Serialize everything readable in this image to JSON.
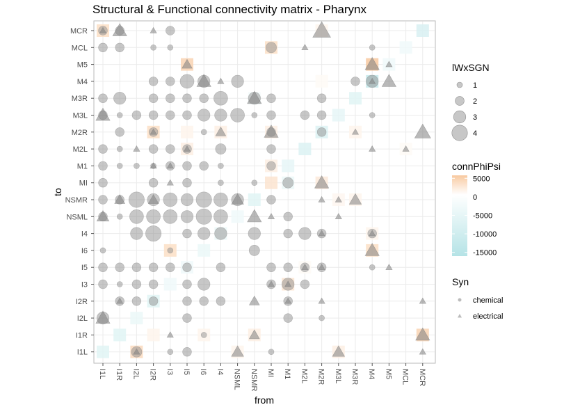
{
  "chart_data": {
    "type": "scatter",
    "title": "Structural & Functional connectivity matrix - Pharynx",
    "xlabel": "from",
    "ylabel": "to",
    "x_categories": [
      "I1L",
      "I1R",
      "I2L",
      "I2R",
      "I3",
      "I5",
      "I6",
      "I4",
      "NSML",
      "NSMR",
      "MI",
      "M1",
      "M2L",
      "M2R",
      "M3L",
      "M3R",
      "M4",
      "M5",
      "MCL",
      "MCR"
    ],
    "y_categories": [
      "MCR",
      "MCL",
      "M5",
      "M4",
      "M3R",
      "M3L",
      "M2R",
      "M2L",
      "M1",
      "MI",
      "NSMR",
      "NSML",
      "I4",
      "I6",
      "I5",
      "I3",
      "I2R",
      "I2L",
      "I1R",
      "I1L"
    ],
    "legend_size": {
      "title": "lWxSGN",
      "labels": [
        "1",
        "2",
        "3",
        "4"
      ],
      "values": [
        1,
        2,
        3,
        4
      ]
    },
    "legend_color": {
      "title": "connPhiPsi",
      "labels": [
        "5000",
        "0",
        "-5000",
        "-10000",
        "-15000"
      ],
      "values": [
        5000,
        0,
        -5000,
        -10000,
        -15000
      ],
      "colors": {
        "positive": "#f8c9a0",
        "zero": "#ffffff",
        "negative": "#b5e3e6"
      }
    },
    "legend_shape": {
      "title": "Syn",
      "labels": [
        "chemical",
        "electrical"
      ]
    },
    "tiles": [
      [
        "MCR",
        "I1L",
        3000
      ],
      [
        "MCR",
        "M2R",
        1000
      ],
      [
        "MCR",
        "MCR",
        -8000
      ],
      [
        "MCL",
        "MI",
        3000
      ],
      [
        "MCL",
        "MCL",
        -3000
      ],
      [
        "M5",
        "I5",
        4000
      ],
      [
        "M5",
        "M4",
        5000
      ],
      [
        "M5",
        "M5",
        -3000
      ],
      [
        "M4",
        "M2R",
        500
      ],
      [
        "M4",
        "M4",
        -12000
      ],
      [
        "M3R",
        "NSMR",
        -2000
      ],
      [
        "M3R",
        "M3R",
        -6000
      ],
      [
        "M3L",
        "M3L",
        -5000
      ],
      [
        "M2R",
        "I2R",
        3000
      ],
      [
        "M2R",
        "I5",
        1000
      ],
      [
        "M2R",
        "I4",
        1500
      ],
      [
        "M2R",
        "MI",
        1500
      ],
      [
        "M2R",
        "M2R",
        -7000
      ],
      [
        "M2R",
        "M3R",
        1000
      ],
      [
        "M2L",
        "I5",
        1500
      ],
      [
        "M2L",
        "M2L",
        -7000
      ],
      [
        "M2L",
        "MCL",
        500
      ],
      [
        "M1",
        "M1",
        -5000
      ],
      [
        "M1",
        "MI",
        1500
      ],
      [
        "MI",
        "MI",
        2500
      ],
      [
        "MI",
        "M1",
        -4000
      ],
      [
        "MI",
        "M2R",
        2000
      ],
      [
        "NSMR",
        "NSMR",
        -6000
      ],
      [
        "NSMR",
        "M3L",
        800
      ],
      [
        "NSMR",
        "M3R",
        1000
      ],
      [
        "NSML",
        "NSML",
        -3000
      ],
      [
        "I4",
        "I4",
        -4000
      ],
      [
        "I4",
        "M4",
        1000
      ],
      [
        "I6",
        "I3",
        3000
      ],
      [
        "I6",
        "I6",
        -4000
      ],
      [
        "I6",
        "M4",
        3000
      ],
      [
        "I5",
        "I5",
        -3000
      ],
      [
        "I5",
        "M2L",
        500
      ],
      [
        "I3",
        "I3",
        -3000
      ],
      [
        "I3",
        "M1",
        2500
      ],
      [
        "I2R",
        "I2R",
        -6000
      ],
      [
        "I2L",
        "I2L",
        -4000
      ],
      [
        "I1R",
        "I1R",
        -6000
      ],
      [
        "I1R",
        "I2R",
        1000
      ],
      [
        "I1R",
        "I6",
        1000
      ],
      [
        "I1R",
        "NSMR",
        1500
      ],
      [
        "I1R",
        "MCR",
        4000
      ],
      [
        "I1L",
        "I1L",
        -6000
      ],
      [
        "I1L",
        "I2L",
        3500
      ],
      [
        "I1L",
        "NSML",
        1000
      ],
      [
        "I1L",
        "M3L",
        1500
      ]
    ],
    "points": [
      [
        "MCR",
        "I1L",
        "chemical",
        2
      ],
      [
        "MCR",
        "I1L",
        "electrical",
        1
      ],
      [
        "MCR",
        "I1R",
        "chemical",
        2
      ],
      [
        "MCR",
        "I1R",
        "electrical",
        3
      ],
      [
        "MCR",
        "I2R",
        "electrical",
        1
      ],
      [
        "MCR",
        "I3",
        "chemical",
        2
      ],
      [
        "MCR",
        "M2R",
        "electrical",
        4
      ],
      [
        "MCL",
        "I1L",
        "chemical",
        2
      ],
      [
        "MCL",
        "I1R",
        "chemical",
        2
      ],
      [
        "MCL",
        "I2R",
        "chemical",
        1
      ],
      [
        "MCL",
        "I3",
        "chemical",
        1
      ],
      [
        "MCL",
        "MI",
        "chemical",
        2.5
      ],
      [
        "MCL",
        "M2L",
        "electrical",
        1
      ],
      [
        "MCL",
        "M4",
        "chemical",
        1
      ],
      [
        "M5",
        "I5",
        "electrical",
        2
      ],
      [
        "M5",
        "M4",
        "electrical",
        3
      ],
      [
        "M5",
        "M5",
        "electrical",
        1
      ],
      [
        "M4",
        "I2R",
        "chemical",
        2
      ],
      [
        "M4",
        "I3",
        "chemical",
        2
      ],
      [
        "M4",
        "I5",
        "chemical",
        3.5
      ],
      [
        "M4",
        "I6",
        "chemical",
        3
      ],
      [
        "M4",
        "I6",
        "electrical",
        3
      ],
      [
        "M4",
        "I4",
        "electrical",
        1
      ],
      [
        "M4",
        "NSML",
        "chemical",
        3
      ],
      [
        "M4",
        "M3R",
        "chemical",
        2
      ],
      [
        "M4",
        "M4",
        "chemical",
        3
      ],
      [
        "M4",
        "M4",
        "electrical",
        1
      ],
      [
        "M4",
        "M5",
        "electrical",
        3
      ],
      [
        "M3R",
        "I1L",
        "chemical",
        2
      ],
      [
        "M3R",
        "I1R",
        "chemical",
        3
      ],
      [
        "M3R",
        "I2R",
        "chemical",
        2
      ],
      [
        "M3R",
        "I3",
        "chemical",
        2
      ],
      [
        "M3R",
        "I5",
        "chemical",
        2
      ],
      [
        "M3R",
        "I6",
        "chemical",
        2
      ],
      [
        "M3R",
        "I4",
        "chemical",
        3.5
      ],
      [
        "M3R",
        "NSMR",
        "chemical",
        3
      ],
      [
        "M3R",
        "NSMR",
        "electrical",
        3
      ],
      [
        "M3R",
        "MI",
        "chemical",
        2
      ],
      [
        "M3R",
        "M2R",
        "chemical",
        2
      ],
      [
        "M3L",
        "I1L",
        "chemical",
        2
      ],
      [
        "M3L",
        "I1L",
        "electrical",
        3
      ],
      [
        "M3L",
        "I1R",
        "chemical",
        1
      ],
      [
        "M3L",
        "I2L",
        "chemical",
        2
      ],
      [
        "M3L",
        "I2R",
        "chemical",
        2
      ],
      [
        "M3L",
        "I3",
        "chemical",
        2
      ],
      [
        "M3L",
        "I5",
        "chemical",
        2
      ],
      [
        "M3L",
        "I6",
        "chemical",
        3
      ],
      [
        "M3L",
        "I4",
        "chemical",
        3
      ],
      [
        "M3L",
        "NSML",
        "chemical",
        3.5
      ],
      [
        "M3L",
        "NSMR",
        "chemical",
        1
      ],
      [
        "M3L",
        "MI",
        "chemical",
        2
      ],
      [
        "M3L",
        "M2L",
        "chemical",
        2
      ],
      [
        "M3L",
        "M2R",
        "chemical",
        2
      ],
      [
        "M3L",
        "M4",
        "chemical",
        1
      ],
      [
        "M2R",
        "I1R",
        "chemical",
        2
      ],
      [
        "M2R",
        "I2R",
        "chemical",
        2
      ],
      [
        "M2R",
        "I2R",
        "electrical",
        1
      ],
      [
        "M2R",
        "I6",
        "chemical",
        1
      ],
      [
        "M2R",
        "I4",
        "electrical",
        2
      ],
      [
        "M2R",
        "MI",
        "chemical",
        2
      ],
      [
        "M2R",
        "MI",
        "electrical",
        3
      ],
      [
        "M2R",
        "M2R",
        "chemical",
        2
      ],
      [
        "M2R",
        "M3R",
        "electrical",
        1
      ],
      [
        "M2R",
        "MCR",
        "electrical",
        3.5
      ],
      [
        "M2L",
        "I1L",
        "chemical",
        2
      ],
      [
        "M2L",
        "I1R",
        "chemical",
        1
      ],
      [
        "M2L",
        "I2L",
        "electrical",
        1
      ],
      [
        "M2L",
        "I2R",
        "chemical",
        2
      ],
      [
        "M2L",
        "I3",
        "chemical",
        2
      ],
      [
        "M2L",
        "I5",
        "chemical",
        2
      ],
      [
        "M2L",
        "I5",
        "electrical",
        1
      ],
      [
        "M2L",
        "I4",
        "chemical",
        2.5
      ],
      [
        "M2L",
        "MI",
        "chemical",
        2
      ],
      [
        "M2L",
        "M4",
        "electrical",
        1
      ],
      [
        "M2L",
        "MCL",
        "electrical",
        1
      ],
      [
        "M1",
        "I1L",
        "chemical",
        2
      ],
      [
        "M1",
        "I1R",
        "chemical",
        1
      ],
      [
        "M1",
        "I2L",
        "chemical",
        1
      ],
      [
        "M1",
        "I2R",
        "chemical",
        1
      ],
      [
        "M1",
        "I2R",
        "electrical",
        1
      ],
      [
        "M1",
        "I3",
        "chemical",
        2
      ],
      [
        "M1",
        "I3",
        "electrical",
        1
      ],
      [
        "M1",
        "I5",
        "chemical",
        2
      ],
      [
        "M1",
        "I6",
        "chemical",
        2
      ],
      [
        "M1",
        "I4",
        "chemical",
        1
      ],
      [
        "M1",
        "MI",
        "chemical",
        2
      ],
      [
        "MI",
        "I1L",
        "chemical",
        2
      ],
      [
        "MI",
        "I2R",
        "chemical",
        2
      ],
      [
        "MI",
        "I3",
        "electrical",
        1
      ],
      [
        "MI",
        "I5",
        "chemical",
        2
      ],
      [
        "MI",
        "I4",
        "chemical",
        1
      ],
      [
        "MI",
        "NSMR",
        "chemical",
        1
      ],
      [
        "MI",
        "M1",
        "chemical",
        2.5
      ],
      [
        "MI",
        "M2R",
        "electrical",
        3
      ],
      [
        "NSMR",
        "I1L",
        "chemical",
        2
      ],
      [
        "NSMR",
        "I1R",
        "chemical",
        2
      ],
      [
        "NSMR",
        "I1R",
        "electrical",
        2
      ],
      [
        "NSMR",
        "I2L",
        "chemical",
        4
      ],
      [
        "NSMR",
        "I2R",
        "chemical",
        3
      ],
      [
        "NSMR",
        "I2R",
        "electrical",
        2
      ],
      [
        "NSMR",
        "I3",
        "chemical",
        3.5
      ],
      [
        "NSMR",
        "I5",
        "chemical",
        3
      ],
      [
        "NSMR",
        "I6",
        "chemical",
        4
      ],
      [
        "NSMR",
        "I4",
        "chemical",
        3.5
      ],
      [
        "NSMR",
        "NSML",
        "chemical",
        3
      ],
      [
        "NSMR",
        "NSML",
        "electrical",
        2.5
      ],
      [
        "NSMR",
        "MI",
        "chemical",
        2
      ],
      [
        "NSMR",
        "M2R",
        "electrical",
        1
      ],
      [
        "NSMR",
        "M3L",
        "electrical",
        1
      ],
      [
        "NSMR",
        "M3R",
        "electrical",
        2.5
      ],
      [
        "NSML",
        "I1L",
        "chemical",
        2
      ],
      [
        "NSML",
        "I1L",
        "electrical",
        2.5
      ],
      [
        "NSML",
        "I1R",
        "chemical",
        1
      ],
      [
        "NSML",
        "I2L",
        "chemical",
        3.5
      ],
      [
        "NSML",
        "I2R",
        "chemical",
        3.5
      ],
      [
        "NSML",
        "I3",
        "chemical",
        3.5
      ],
      [
        "NSML",
        "I5",
        "chemical",
        3
      ],
      [
        "NSML",
        "I6",
        "chemical",
        4
      ],
      [
        "NSML",
        "I4",
        "chemical",
        3.5
      ],
      [
        "NSML",
        "NSMR",
        "electrical",
        3
      ],
      [
        "NSML",
        "MI",
        "electrical",
        1
      ],
      [
        "NSML",
        "M1",
        "chemical",
        2
      ],
      [
        "NSML",
        "M3L",
        "electrical",
        1
      ],
      [
        "I4",
        "I2L",
        "chemical",
        3
      ],
      [
        "I4",
        "I2R",
        "chemical",
        4
      ],
      [
        "I4",
        "I5",
        "chemical",
        2
      ],
      [
        "I4",
        "I6",
        "chemical",
        3
      ],
      [
        "I4",
        "I4",
        "chemical",
        3
      ],
      [
        "I4",
        "NSMR",
        "chemical",
        3
      ],
      [
        "I4",
        "M1",
        "chemical",
        2
      ],
      [
        "I4",
        "M2L",
        "chemical",
        3
      ],
      [
        "I4",
        "M2R",
        "chemical",
        2
      ],
      [
        "I4",
        "M2R",
        "electrical",
        1
      ],
      [
        "I4",
        "M4",
        "chemical",
        2
      ],
      [
        "I4",
        "M4",
        "electrical",
        1
      ],
      [
        "I6",
        "I1L",
        "chemical",
        1
      ],
      [
        "I6",
        "I3",
        "chemical",
        1
      ],
      [
        "I6",
        "NSMR",
        "chemical",
        2.5
      ],
      [
        "I6",
        "M4",
        "electrical",
        3
      ],
      [
        "I5",
        "I1L",
        "chemical",
        2
      ],
      [
        "I5",
        "I1R",
        "chemical",
        2
      ],
      [
        "I5",
        "I2L",
        "chemical",
        2
      ],
      [
        "I5",
        "I2R",
        "chemical",
        2
      ],
      [
        "I5",
        "I3",
        "chemical",
        2
      ],
      [
        "I5",
        "I5",
        "chemical",
        2
      ],
      [
        "I5",
        "I4",
        "chemical",
        2
      ],
      [
        "I5",
        "MI",
        "chemical",
        2
      ],
      [
        "I5",
        "M1",
        "chemical",
        2
      ],
      [
        "I5",
        "M2L",
        "chemical",
        2
      ],
      [
        "I5",
        "M2L",
        "electrical",
        1
      ],
      [
        "I5",
        "M2R",
        "chemical",
        2
      ],
      [
        "I5",
        "M2R",
        "electrical",
        1
      ],
      [
        "I5",
        "M4",
        "chemical",
        1
      ],
      [
        "I5",
        "M5",
        "electrical",
        1
      ],
      [
        "I3",
        "I1L",
        "chemical",
        2
      ],
      [
        "I3",
        "I1R",
        "chemical",
        1
      ],
      [
        "I3",
        "I2L",
        "chemical",
        2
      ],
      [
        "I3",
        "I2R",
        "chemical",
        2
      ],
      [
        "I3",
        "I5",
        "chemical",
        2
      ],
      [
        "I3",
        "I6",
        "chemical",
        3
      ],
      [
        "I3",
        "MI",
        "chemical",
        2
      ],
      [
        "I3",
        "MI",
        "electrical",
        1
      ],
      [
        "I3",
        "M1",
        "chemical",
        3
      ],
      [
        "I3",
        "M1",
        "electrical",
        1
      ],
      [
        "I3",
        "M2L",
        "chemical",
        2
      ],
      [
        "I2R",
        "I1R",
        "chemical",
        2
      ],
      [
        "I2R",
        "I1R",
        "electrical",
        1
      ],
      [
        "I2R",
        "I2L",
        "chemical",
        2
      ],
      [
        "I2R",
        "I2R",
        "chemical",
        2
      ],
      [
        "I2R",
        "I5",
        "chemical",
        2
      ],
      [
        "I2R",
        "I6",
        "chemical",
        2
      ],
      [
        "I2R",
        "I4",
        "chemical",
        2
      ],
      [
        "I2R",
        "NSMR",
        "electrical",
        2
      ],
      [
        "I2R",
        "M1",
        "chemical",
        2
      ],
      [
        "I2R",
        "M1",
        "electrical",
        1
      ],
      [
        "I2R",
        "M2R",
        "electrical",
        1
      ],
      [
        "I2R",
        "MCR",
        "electrical",
        1
      ],
      [
        "I2L",
        "I1L",
        "chemical",
        3
      ],
      [
        "I2L",
        "I1L",
        "electrical",
        3
      ],
      [
        "I2L",
        "I5",
        "chemical",
        2
      ],
      [
        "I2L",
        "M1",
        "chemical",
        2
      ],
      [
        "I2L",
        "M2R",
        "chemical",
        1
      ],
      [
        "I1R",
        "I3",
        "electrical",
        1
      ],
      [
        "I1R",
        "I6",
        "chemical",
        1
      ],
      [
        "I1R",
        "NSMR",
        "electrical",
        2
      ],
      [
        "I1R",
        "MCR",
        "electrical",
        3
      ],
      [
        "I1L",
        "I2L",
        "chemical",
        2.5
      ],
      [
        "I1L",
        "I2L",
        "electrical",
        1
      ],
      [
        "I1L",
        "I3",
        "chemical",
        1
      ],
      [
        "I1L",
        "I5",
        "chemical",
        2
      ],
      [
        "I1L",
        "NSML",
        "electrical",
        2.5
      ],
      [
        "I1L",
        "MI",
        "chemical",
        1
      ],
      [
        "I1L",
        "M3L",
        "electrical",
        2.5
      ],
      [
        "I1L",
        "MCR",
        "electrical",
        1
      ]
    ]
  }
}
